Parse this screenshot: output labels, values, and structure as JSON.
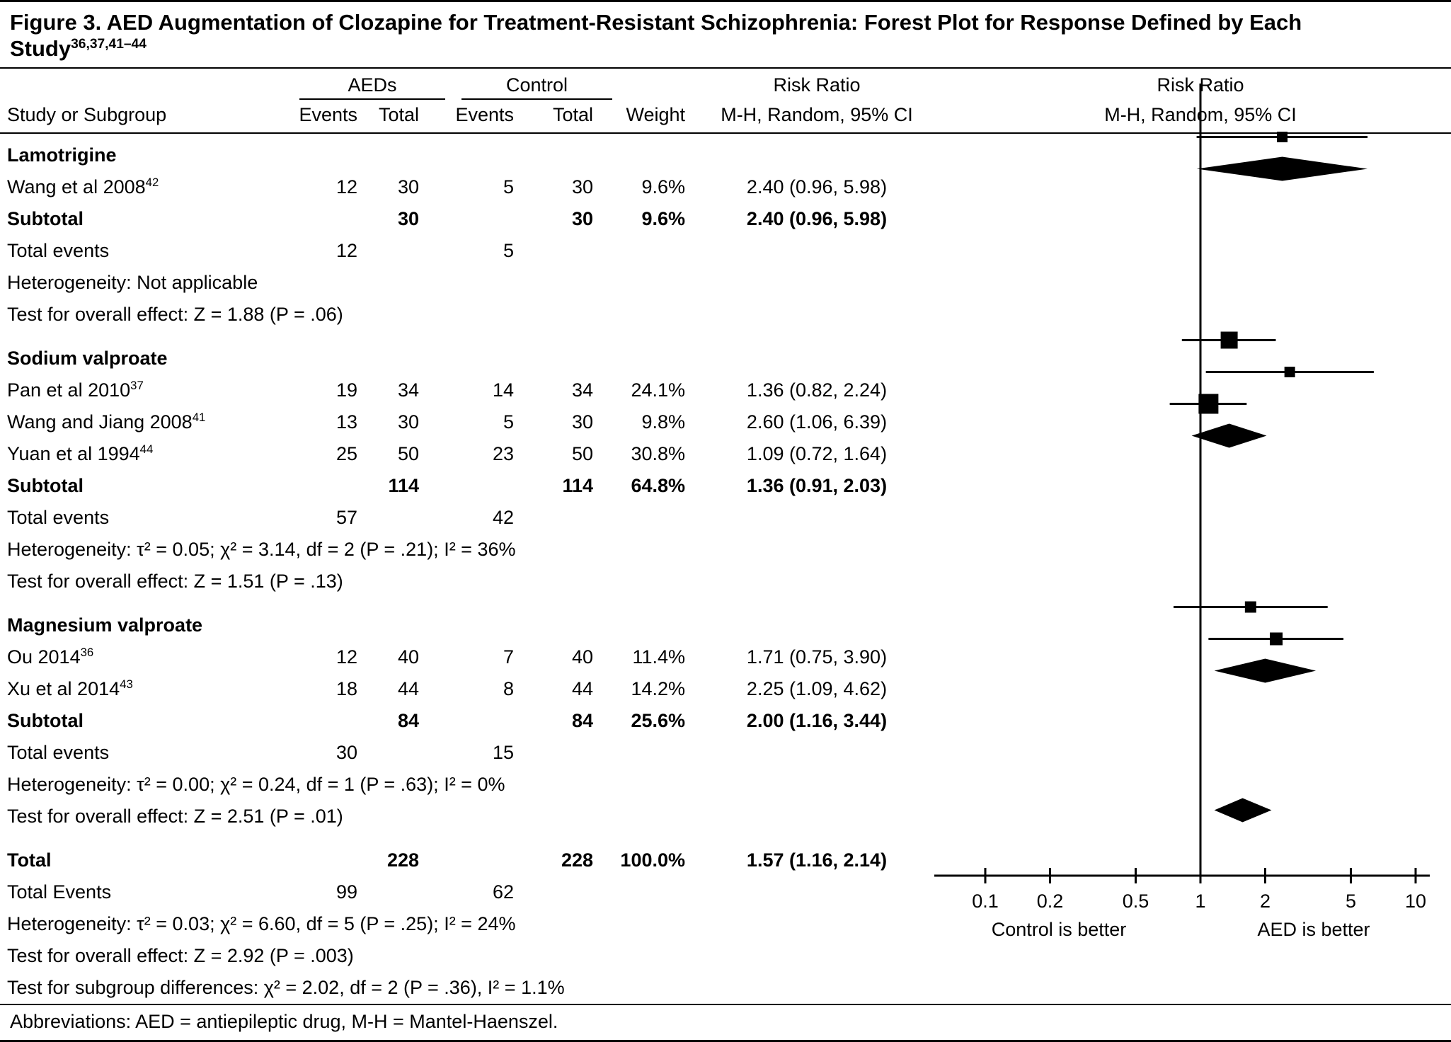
{
  "figure": {
    "title": "Figure 3. AED Augmentation of Clozapine for Treatment-Resistant Schizophrenia: Forest Plot for Response Defined by Each Study",
    "title_refs": "36,37,41–44"
  },
  "columns": {
    "study": "Study or Subgroup",
    "aeds": "AEDs",
    "control": "Control",
    "events": "Events",
    "total": "Total",
    "weight": "Weight",
    "risk_ratio": "Risk Ratio",
    "method": "M-H, Random, 95% CI"
  },
  "chart_data": {
    "type": "forest",
    "x_scale": "log",
    "x_range": [
      0.1,
      10
    ],
    "x_ticks": [
      "0.1",
      "0.2",
      "0.5",
      "1",
      "2",
      "5",
      "10"
    ],
    "x_tick_values": [
      0.1,
      0.2,
      0.5,
      1,
      2,
      5,
      10
    ],
    "left_better_label": "Control is better",
    "right_better_label": "AED is better",
    "groups": [
      {
        "name": "Lamotrigine",
        "studies": [
          {
            "label": "Wang et al 2008",
            "ref": "42",
            "aed_events": "12",
            "aed_total": "30",
            "ctrl_events": "5",
            "ctrl_total": "30",
            "weight": "9.6%",
            "weight_value": 9.6,
            "rr_text": "2.40 (0.96, 5.98)",
            "rr": 2.4,
            "ci_low": 0.96,
            "ci_high": 5.98
          }
        ],
        "subtotal": {
          "label": "Subtotal",
          "aed_total": "30",
          "ctrl_total": "30",
          "weight": "9.6%",
          "rr_text": "2.40 (0.96, 5.98)",
          "rr": 2.4,
          "ci_low": 0.96,
          "ci_high": 5.98
        },
        "total_events_label": "Total events",
        "total_events_aed": "12",
        "total_events_ctrl": "5",
        "heterogeneity": "Heterogeneity: Not applicable",
        "overall_effect": "Test for overall effect: Z = 1.88 (P = .06)"
      },
      {
        "name": "Sodium valproate",
        "studies": [
          {
            "label": "Pan et al 2010",
            "ref": "37",
            "aed_events": "19",
            "aed_total": "34",
            "ctrl_events": "14",
            "ctrl_total": "34",
            "weight": "24.1%",
            "weight_value": 24.1,
            "rr_text": "1.36 (0.82, 2.24)",
            "rr": 1.36,
            "ci_low": 0.82,
            "ci_high": 2.24
          },
          {
            "label": "Wang and Jiang 2008",
            "ref": "41",
            "aed_events": "13",
            "aed_total": "30",
            "ctrl_events": "5",
            "ctrl_total": "30",
            "weight": "9.8%",
            "weight_value": 9.8,
            "rr_text": "2.60 (1.06, 6.39)",
            "rr": 2.6,
            "ci_low": 1.06,
            "ci_high": 6.39
          },
          {
            "label": "Yuan et al 1994",
            "ref": "44",
            "aed_events": "25",
            "aed_total": "50",
            "ctrl_events": "23",
            "ctrl_total": "50",
            "weight": "30.8%",
            "weight_value": 30.8,
            "rr_text": "1.09 (0.72, 1.64)",
            "rr": 1.09,
            "ci_low": 0.72,
            "ci_high": 1.64
          }
        ],
        "subtotal": {
          "label": "Subtotal",
          "aed_total": "114",
          "ctrl_total": "114",
          "weight": "64.8%",
          "rr_text": "1.36 (0.91, 2.03)",
          "rr": 1.36,
          "ci_low": 0.91,
          "ci_high": 2.03
        },
        "total_events_label": "Total events",
        "total_events_aed": "57",
        "total_events_ctrl": "42",
        "heterogeneity": "Heterogeneity: τ² = 0.05; χ² = 3.14, df = 2 (P = .21); I² = 36%",
        "overall_effect": "Test for overall effect: Z = 1.51 (P = .13)"
      },
      {
        "name": "Magnesium valproate",
        "studies": [
          {
            "label": "Ou 2014",
            "ref": "36",
            "aed_events": "12",
            "aed_total": "40",
            "ctrl_events": "7",
            "ctrl_total": "40",
            "weight": "11.4%",
            "weight_value": 11.4,
            "rr_text": "1.71 (0.75, 3.90)",
            "rr": 1.71,
            "ci_low": 0.75,
            "ci_high": 3.9
          },
          {
            "label": "Xu et al 2014",
            "ref": "43",
            "aed_events": "18",
            "aed_total": "44",
            "ctrl_events": "8",
            "ctrl_total": "44",
            "weight": "14.2%",
            "weight_value": 14.2,
            "rr_text": "2.25 (1.09, 4.62)",
            "rr": 2.25,
            "ci_low": 1.09,
            "ci_high": 4.62
          }
        ],
        "subtotal": {
          "label": "Subtotal",
          "aed_total": "84",
          "ctrl_total": "84",
          "weight": "25.6%",
          "rr_text": "2.00 (1.16, 3.44)",
          "rr": 2.0,
          "ci_low": 1.16,
          "ci_high": 3.44
        },
        "total_events_label": "Total events",
        "total_events_aed": "30",
        "total_events_ctrl": "15",
        "heterogeneity": "Heterogeneity: τ² = 0.00; χ² = 0.24, df = 1 (P = .63); I² = 0%",
        "overall_effect": "Test for overall effect: Z = 2.51 (P = .01)"
      }
    ],
    "total": {
      "label": "Total",
      "aed_total": "228",
      "ctrl_total": "228",
      "weight": "100.0%",
      "rr_text": "1.57 (1.16, 2.14)",
      "rr": 1.57,
      "ci_low": 1.16,
      "ci_high": 2.14,
      "total_events_label": "Total Events",
      "total_events_aed": "99",
      "total_events_ctrl": "62",
      "heterogeneity": "Heterogeneity: τ² = 0.03; χ² = 6.60, df = 5 (P = .25); I² = 24%",
      "overall_effect": "Test for overall effect: Z = 2.92 (P = .003)",
      "subgroup_differences": "Test for subgroup differences: χ² = 2.02, df = 2 (P = .36), I² = 1.1%"
    }
  },
  "footer": {
    "abbreviations": "Abbreviations: AED = antiepileptic drug, M-H = Mantel-Haenszel."
  }
}
